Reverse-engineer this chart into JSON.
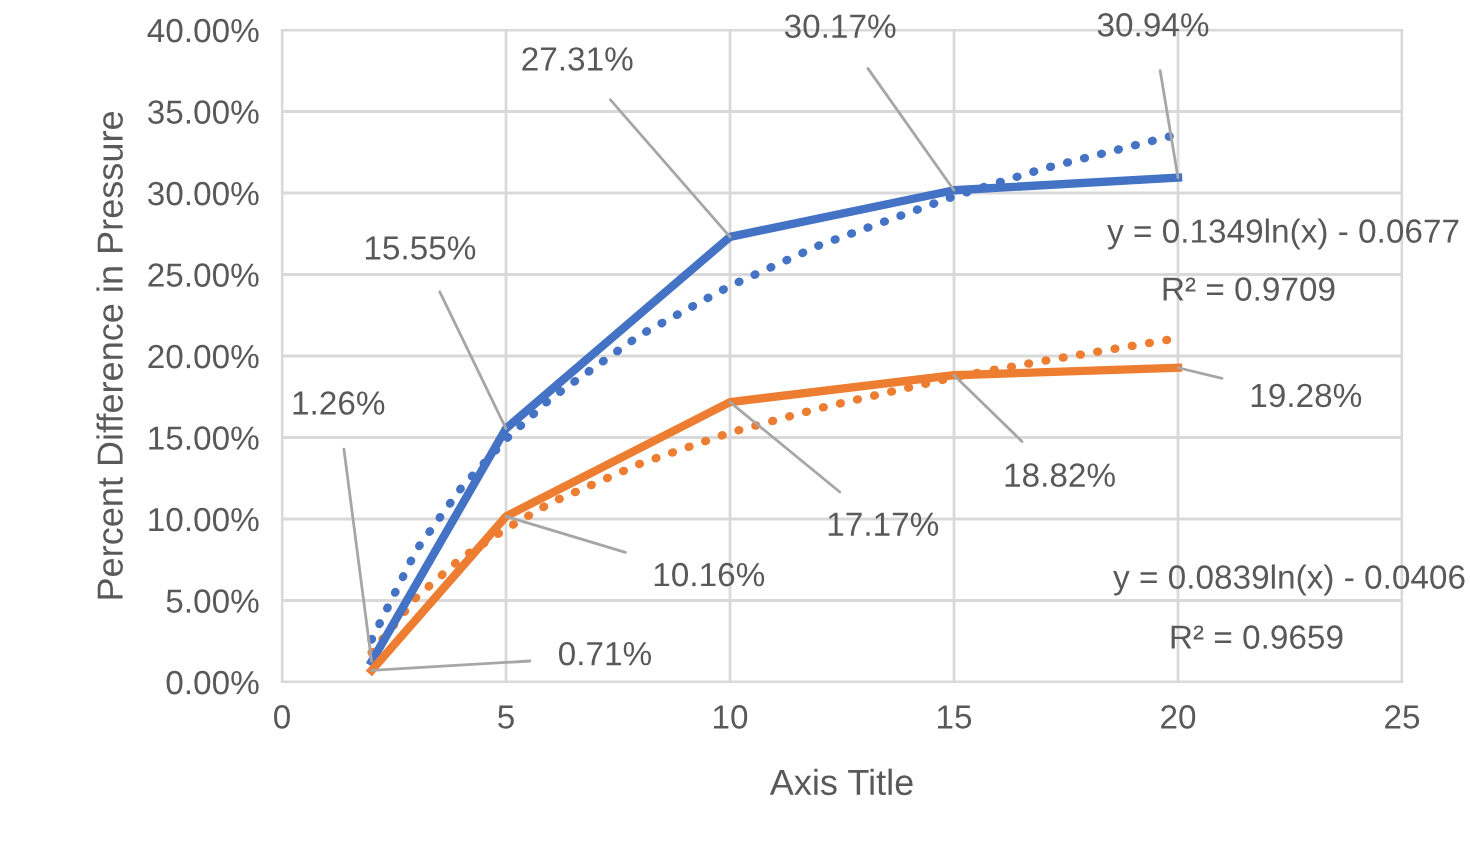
{
  "chart_data": {
    "type": "line",
    "xlabel": "Axis Title",
    "ylabel": "Percent Difference in Pressure",
    "x": [
      2,
      5,
      10,
      15,
      20
    ],
    "series": [
      {
        "color": "#4472c4",
        "values": [
          1.26,
          15.55,
          27.31,
          30.17,
          30.94
        ],
        "value_labels": [
          "1.26%",
          "15.55%",
          "27.31%",
          "30.17%",
          "30.94%"
        ]
      },
      {
        "color": "#ed7d31",
        "values": [
          0.71,
          10.16,
          17.17,
          18.82,
          19.28
        ],
        "value_labels": [
          "0.71%",
          "10.16%",
          "17.17%",
          "18.82%",
          "19.28%"
        ]
      },
      {
        "color": "#4472c4",
        "line_style": "dotted",
        "x": [
          2,
          3,
          4,
          5,
          6,
          8,
          10,
          12,
          15,
          17,
          20
        ],
        "values": [
          2.6,
          8.1,
          11.9,
          14.9,
          17.4,
          21.3,
          24.3,
          26.8,
          29.8,
          31.5,
          33.6
        ]
      },
      {
        "color": "#ed7d31",
        "line_style": "dotted",
        "x": [
          2,
          3,
          4,
          5,
          6,
          8,
          10,
          12,
          15,
          17,
          20
        ],
        "values": [
          1.8,
          5.2,
          7.6,
          9.4,
          11.0,
          13.4,
          15.3,
          16.8,
          18.7,
          19.7,
          21.1
        ]
      }
    ],
    "annotations": [
      "y = 0.1349ln(x) - 0.0677",
      "R² = 0.9709",
      "y = 0.0839ln(x) - 0.0406",
      "R² = 0.9659"
    ],
    "xlim": [
      0,
      25
    ],
    "xticks": [
      0,
      5,
      10,
      15,
      20,
      25
    ],
    "ylim": [
      0,
      40
    ],
    "yticks": [
      {
        "value": 0,
        "label": "0.00%"
      },
      {
        "value": 5,
        "label": "5.00%"
      },
      {
        "value": 10,
        "label": "10.00%"
      },
      {
        "value": 15,
        "label": "15.00%"
      },
      {
        "value": 20,
        "label": "20.00%"
      },
      {
        "value": 25,
        "label": "25.00%"
      },
      {
        "value": 30,
        "label": "30.00%"
      },
      {
        "value": 35,
        "label": "35.00%"
      },
      {
        "value": 40,
        "label": "40.00%"
      }
    ],
    "grid": true,
    "legend": false,
    "line_style": "solid",
    "marker": "none"
  }
}
